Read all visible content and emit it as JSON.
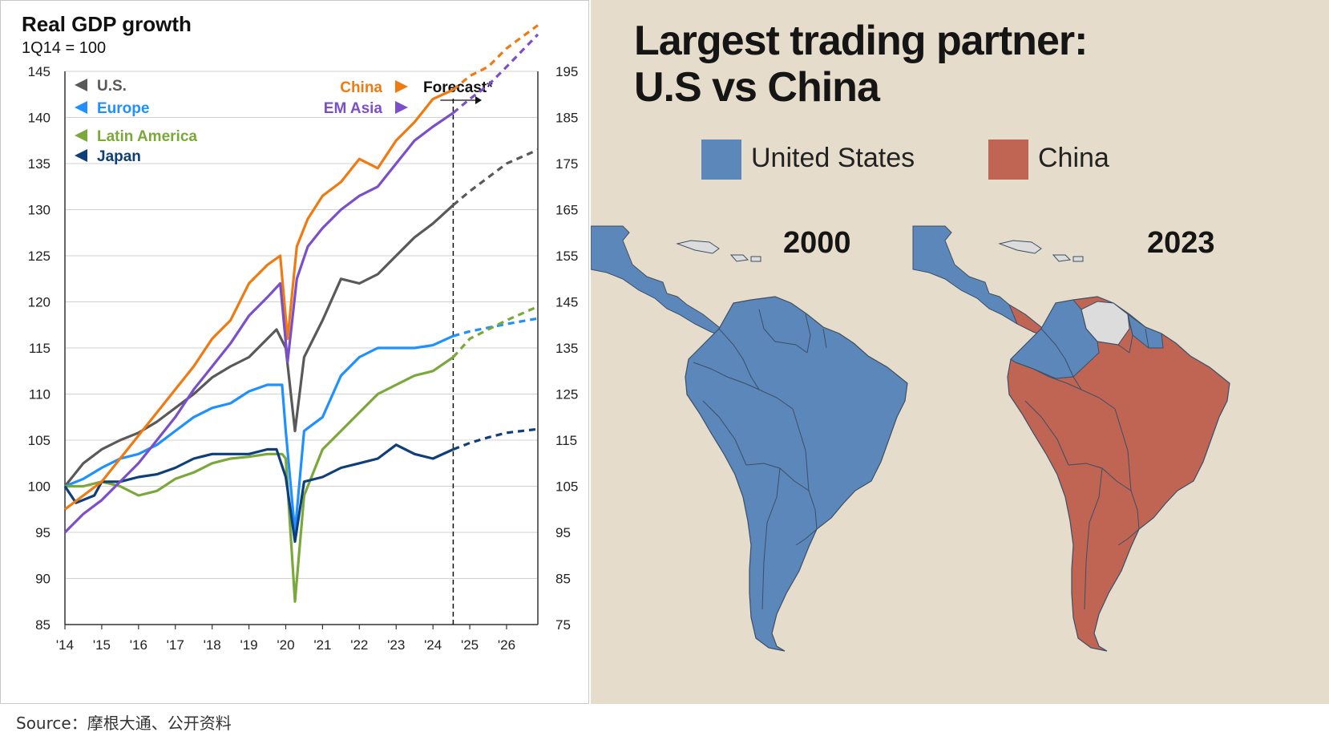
{
  "chart_data": {
    "type": "line",
    "title": "Real GDP growth",
    "subtitle": "1Q14 = 100",
    "x_ticks": [
      "'14",
      "'15",
      "'16",
      "'17",
      "'18",
      "'19",
      "'20",
      "'21",
      "'22",
      "'23",
      "'24",
      "'25",
      "'26"
    ],
    "x_range": [
      2014,
      2026.85
    ],
    "y_left": {
      "range": [
        85,
        145
      ],
      "ticks": [
        85,
        90,
        95,
        100,
        105,
        110,
        115,
        120,
        125,
        130,
        135,
        140,
        145
      ]
    },
    "y_right": {
      "range": [
        75,
        195
      ],
      "ticks": [
        75,
        85,
        95,
        105,
        115,
        125,
        135,
        145,
        155,
        165,
        175,
        185,
        195
      ]
    },
    "forecast_start": 2024.55,
    "forecast_label": "Forecast*",
    "series": [
      {
        "name": "U.S.",
        "color": "#595959",
        "axis": "left",
        "points": [
          [
            2014,
            100
          ],
          [
            2014.5,
            102.5
          ],
          [
            2015,
            104
          ],
          [
            2015.5,
            105
          ],
          [
            2016,
            105.8
          ],
          [
            2016.5,
            107
          ],
          [
            2017,
            108.5
          ],
          [
            2017.5,
            110
          ],
          [
            2018,
            111.8
          ],
          [
            2018.5,
            113
          ],
          [
            2019,
            114
          ],
          [
            2019.5,
            116
          ],
          [
            2019.75,
            117
          ],
          [
            2020,
            115
          ],
          [
            2020.25,
            106
          ],
          [
            2020.5,
            114
          ],
          [
            2021,
            118
          ],
          [
            2021.5,
            122.5
          ],
          [
            2022,
            122
          ],
          [
            2022.5,
            123
          ],
          [
            2023,
            125
          ],
          [
            2023.5,
            127
          ],
          [
            2024,
            128.5
          ],
          [
            2024.55,
            130.5
          ],
          [
            2025,
            132
          ],
          [
            2025.5,
            133.5
          ],
          [
            2026,
            135
          ],
          [
            2026.85,
            136.5
          ]
        ]
      },
      {
        "name": "Europe",
        "color": "#1e90ff",
        "axis": "left",
        "points": [
          [
            2014,
            100
          ],
          [
            2014.5,
            100.8
          ],
          [
            2015,
            102
          ],
          [
            2015.5,
            103
          ],
          [
            2016,
            103.5
          ],
          [
            2016.5,
            104.5
          ],
          [
            2017,
            106
          ],
          [
            2017.5,
            107.5
          ],
          [
            2018,
            108.5
          ],
          [
            2018.5,
            109
          ],
          [
            2019,
            110.3
          ],
          [
            2019.5,
            111
          ],
          [
            2019.9,
            111
          ],
          [
            2020,
            106
          ],
          [
            2020.25,
            95
          ],
          [
            2020.5,
            106
          ],
          [
            2021,
            107.5
          ],
          [
            2021.5,
            112
          ],
          [
            2022,
            114
          ],
          [
            2022.5,
            115
          ],
          [
            2023,
            115
          ],
          [
            2023.5,
            115
          ],
          [
            2024,
            115.3
          ],
          [
            2024.55,
            116.3
          ],
          [
            2025,
            116.8
          ],
          [
            2025.5,
            117.2
          ],
          [
            2026,
            117.6
          ],
          [
            2026.85,
            118.2
          ]
        ]
      },
      {
        "name": "Latin America",
        "color": "#7aa83a",
        "axis": "left",
        "points": [
          [
            2014,
            100
          ],
          [
            2014.5,
            100
          ],
          [
            2015,
            100.5
          ],
          [
            2015.5,
            100
          ],
          [
            2016,
            99
          ],
          [
            2016.5,
            99.5
          ],
          [
            2017,
            100.8
          ],
          [
            2017.5,
            101.5
          ],
          [
            2018,
            102.5
          ],
          [
            2018.5,
            103
          ],
          [
            2019,
            103.2
          ],
          [
            2019.5,
            103.5
          ],
          [
            2019.9,
            103.5
          ],
          [
            2020,
            103
          ],
          [
            2020.25,
            87.5
          ],
          [
            2020.5,
            99
          ],
          [
            2021,
            104
          ],
          [
            2021.5,
            106
          ],
          [
            2022,
            108
          ],
          [
            2022.5,
            110
          ],
          [
            2023,
            111
          ],
          [
            2023.5,
            112
          ],
          [
            2024,
            112.5
          ],
          [
            2024.55,
            114
          ],
          [
            2025,
            116
          ],
          [
            2025.5,
            117
          ],
          [
            2026,
            118
          ],
          [
            2026.85,
            119.5
          ]
        ]
      },
      {
        "name": "Japan",
        "color": "#0f3f7a",
        "axis": "left",
        "points": [
          [
            2014,
            100
          ],
          [
            2014.3,
            98.2
          ],
          [
            2014.8,
            99
          ],
          [
            2015,
            100.5
          ],
          [
            2015.5,
            100.5
          ],
          [
            2016,
            101
          ],
          [
            2016.5,
            101.3
          ],
          [
            2017,
            102
          ],
          [
            2017.5,
            103
          ],
          [
            2018,
            103.5
          ],
          [
            2018.5,
            103.5
          ],
          [
            2019,
            103.5
          ],
          [
            2019.5,
            104
          ],
          [
            2019.75,
            104
          ],
          [
            2020,
            101
          ],
          [
            2020.25,
            94
          ],
          [
            2020.5,
            100.5
          ],
          [
            2021,
            101
          ],
          [
            2021.5,
            102
          ],
          [
            2022,
            102.5
          ],
          [
            2022.5,
            103
          ],
          [
            2023,
            104.5
          ],
          [
            2023.5,
            103.5
          ],
          [
            2024,
            103
          ],
          [
            2024.55,
            104
          ],
          [
            2025,
            104.7
          ],
          [
            2025.5,
            105.3
          ],
          [
            2026,
            105.8
          ],
          [
            2026.85,
            106.2
          ]
        ]
      },
      {
        "name": "China",
        "color": "#f07a10",
        "axis": "right",
        "points": [
          [
            2014,
            100
          ],
          [
            2014.5,
            103
          ],
          [
            2015,
            106
          ],
          [
            2015.5,
            111
          ],
          [
            2016,
            116
          ],
          [
            2016.5,
            121
          ],
          [
            2017,
            126
          ],
          [
            2017.5,
            131
          ],
          [
            2018,
            137
          ],
          [
            2018.5,
            141
          ],
          [
            2019,
            149
          ],
          [
            2019.5,
            153
          ],
          [
            2019.85,
            155
          ],
          [
            2020.05,
            137
          ],
          [
            2020.3,
            157
          ],
          [
            2020.6,
            163
          ],
          [
            2021,
            168
          ],
          [
            2021.5,
            171
          ],
          [
            2022,
            176
          ],
          [
            2022.5,
            174
          ],
          [
            2023,
            180
          ],
          [
            2023.5,
            184
          ],
          [
            2024,
            189
          ],
          [
            2024.55,
            191
          ],
          [
            2025,
            194
          ],
          [
            2025.5,
            196
          ],
          [
            2026,
            200
          ],
          [
            2026.85,
            205
          ]
        ]
      },
      {
        "name": "EM Asia",
        "color": "#7b4fc9",
        "axis": "right",
        "points": [
          [
            2014,
            95
          ],
          [
            2014.5,
            99
          ],
          [
            2015,
            102
          ],
          [
            2015.5,
            106
          ],
          [
            2016,
            110
          ],
          [
            2016.5,
            115
          ],
          [
            2017,
            120
          ],
          [
            2017.5,
            126
          ],
          [
            2018,
            131
          ],
          [
            2018.5,
            136
          ],
          [
            2019,
            142
          ],
          [
            2019.5,
            146
          ],
          [
            2019.85,
            149
          ],
          [
            2020.05,
            132
          ],
          [
            2020.3,
            150
          ],
          [
            2020.6,
            157
          ],
          [
            2021,
            161
          ],
          [
            2021.5,
            165
          ],
          [
            2022,
            168
          ],
          [
            2022.5,
            170
          ],
          [
            2023,
            175
          ],
          [
            2023.5,
            180
          ],
          [
            2024,
            183
          ],
          [
            2024.55,
            186
          ],
          [
            2025,
            189
          ],
          [
            2025.5,
            192
          ],
          [
            2026,
            196
          ],
          [
            2026.85,
            203
          ]
        ]
      }
    ]
  },
  "map": {
    "title_line1": "Largest trading partner:",
    "title_line2": "U.S vs China",
    "legend": [
      {
        "label": "United States",
        "color": "#5b87bb"
      },
      {
        "label": "China",
        "color": "#c06454"
      }
    ],
    "year_left": "2000",
    "year_right": "2023",
    "colors": {
      "usa": "#5b87bb",
      "china": "#c06454",
      "other": "#dcdcdc",
      "border": "#3b4f66",
      "background": "#e6dccb"
    }
  },
  "source": "Source：摩根大通、公开资料"
}
